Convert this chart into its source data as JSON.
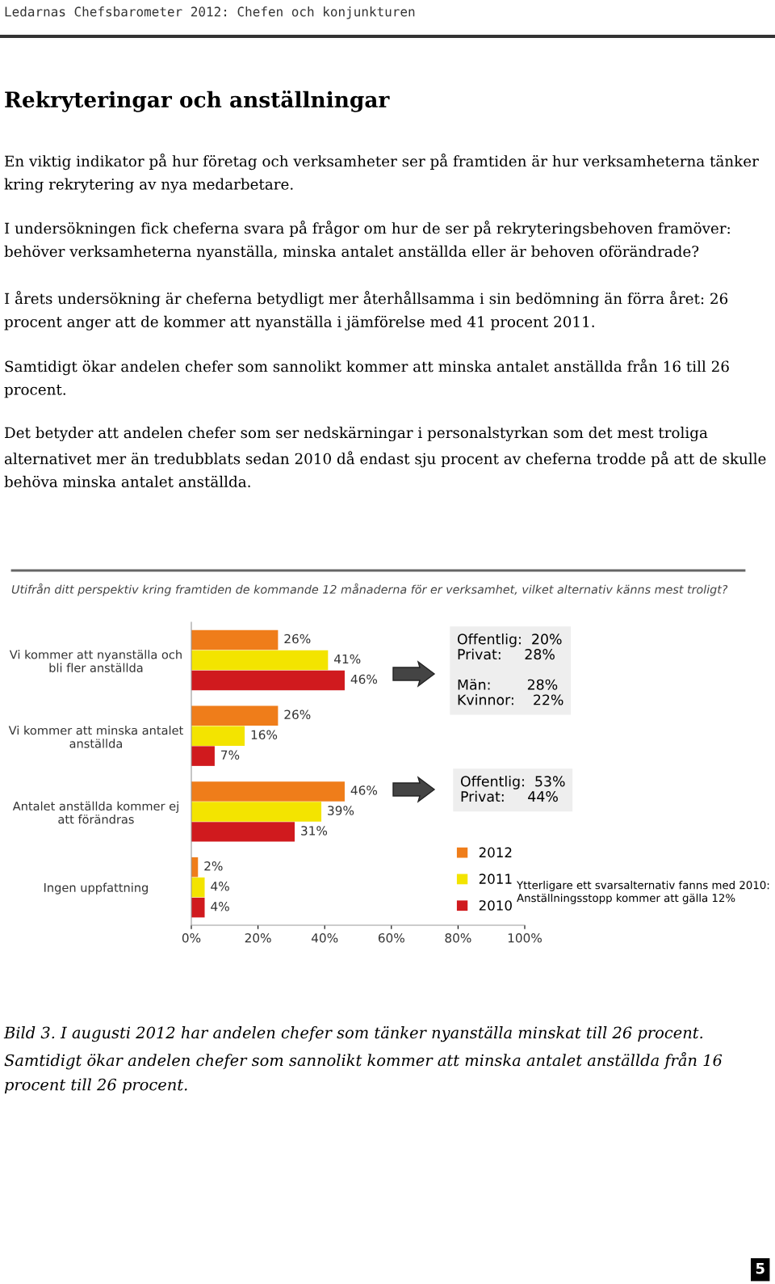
{
  "chart_data": {
    "type": "bar",
    "orientation": "horizontal",
    "title": "Rekryteringar och anställningar",
    "subtitle": "Utifrån ditt perspektiv kring framtiden de kommande 12 månaderna för er verksamhet, vilket alternativ känns mest troligt?",
    "categories": [
      "Vi kommer att nyanställa och\nbli fler anställda",
      "Vi kommer att minska antalet\nanställda",
      "Antalet anställda kommer ej\natt förändras",
      "Ingen uppfattning"
    ],
    "series": [
      {
        "name": "2012",
        "color": "#ef7d1a",
        "values": [
          26,
          26,
          46,
          2
        ],
        "value_labels": [
          "26%",
          "26%",
          "46%",
          "2%"
        ]
      },
      {
        "name": "2011",
        "color": "#f3e400",
        "values": [
          41,
          16,
          39,
          4
        ],
        "value_labels": [
          "41%",
          "16%",
          "39%",
          "4%"
        ]
      },
      {
        "name": "2010",
        "color": "#d01a1e",
        "values": [
          46,
          7,
          31,
          4
        ],
        "value_labels": [
          "46%",
          "7%",
          "31%",
          "4%"
        ]
      }
    ],
    "xlim": [
      0,
      100
    ],
    "xticks": [
      {
        "value": 0,
        "label": "0%"
      },
      {
        "value": 20,
        "label": "20%"
      },
      {
        "value": 40,
        "label": "40%"
      },
      {
        "value": 60,
        "label": "60%"
      },
      {
        "value": 80,
        "label": "80%"
      },
      {
        "value": 100,
        "label": "100%"
      }
    ],
    "grid": false,
    "legend": "bottom right",
    "annotations": [
      "Ledarnas Chefsbarometer 2012: Chefen och konjunkturen",
      "En viktig indikator på hur företag och verksamheter ser på framtiden är hur verksamheterna tänker kring rekrytering av nya medarbetare.",
      "I undersökningen fick cheferna svara på frågor om hur de ser på rekryteringsbehoven framöver: behöver verksamheterna nyanställa, minska antalet anställda eller är behoven oförändrade?",
      "I årets undersökning är cheferna betydligt mer återhållsamma i sin bedömning än förra året: 26 procent anger att de kommer att nyanställa i jämförelse med 41 procent 2011.",
      "Samtidigt ökar andelen chefer som sannolikt kommer att minska antalet anställda från 16 till 26 procent.",
      "Det betyder att andelen chefer som ser nedskärningar i personalstyrkan som det mest troliga alternativet mer än tredubblats sedan 2010 då endast sju procent av cheferna trodde på att de skulle behöva minska antalet anställda.",
      "Offentlig:\t20%\nPrivat:\t28%\n\nMän:\t28%\nKvinnor:\t22%",
      "Offentlig:\t53%\nPrivat:\t44%",
      "Ytterligare ett svarsalternativ fanns med 2010:\nAnställningsstopp kommer att gälla 12%",
      "Bild 3. I augusti 2012 har andelen chefer som tänker nyanställa minskat till 26 procent. Samtidigt ökar andelen chefer som sannolikt kommer att minska antalet anställda från 16 procent till 26 procent.",
      "5"
    ]
  }
}
